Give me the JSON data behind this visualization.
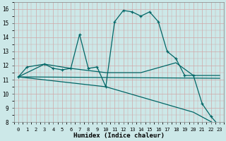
{
  "bg_color": "#cce8e8",
  "grid_color": "#b8d8d8",
  "line_color": "#006666",
  "xlabel": "Humidex (Indice chaleur)",
  "xlim": [
    -0.5,
    23.5
  ],
  "ylim": [
    8,
    16.5
  ],
  "yticks": [
    8,
    9,
    10,
    11,
    12,
    13,
    14,
    15,
    16
  ],
  "xticks": [
    0,
    1,
    2,
    3,
    4,
    5,
    6,
    7,
    8,
    9,
    10,
    11,
    12,
    13,
    14,
    15,
    16,
    17,
    18,
    19,
    20,
    21,
    22,
    23
  ],
  "series1_x": [
    0,
    1,
    3,
    4,
    5,
    6,
    7,
    8,
    9,
    10,
    11,
    12,
    13,
    14,
    15,
    16,
    17,
    18,
    19,
    20,
    21,
    22,
    23
  ],
  "series1_y": [
    11.2,
    11.9,
    12.1,
    11.8,
    11.7,
    11.8,
    14.2,
    11.8,
    11.9,
    10.5,
    15.1,
    15.9,
    15.8,
    15.5,
    15.8,
    15.1,
    13.0,
    12.5,
    11.3,
    11.3,
    9.3,
    8.4,
    7.7
  ],
  "series2_x": [
    0,
    3,
    6,
    10,
    14,
    18,
    20,
    22,
    23
  ],
  "series2_y": [
    11.2,
    12.1,
    11.8,
    11.5,
    11.5,
    12.2,
    11.3,
    11.3,
    11.3
  ],
  "series3_x": [
    0,
    10,
    20,
    23
  ],
  "series3_y": [
    11.2,
    10.5,
    8.7,
    7.7
  ],
  "series4_x": [
    0,
    23
  ],
  "series4_y": [
    11.2,
    11.1
  ]
}
